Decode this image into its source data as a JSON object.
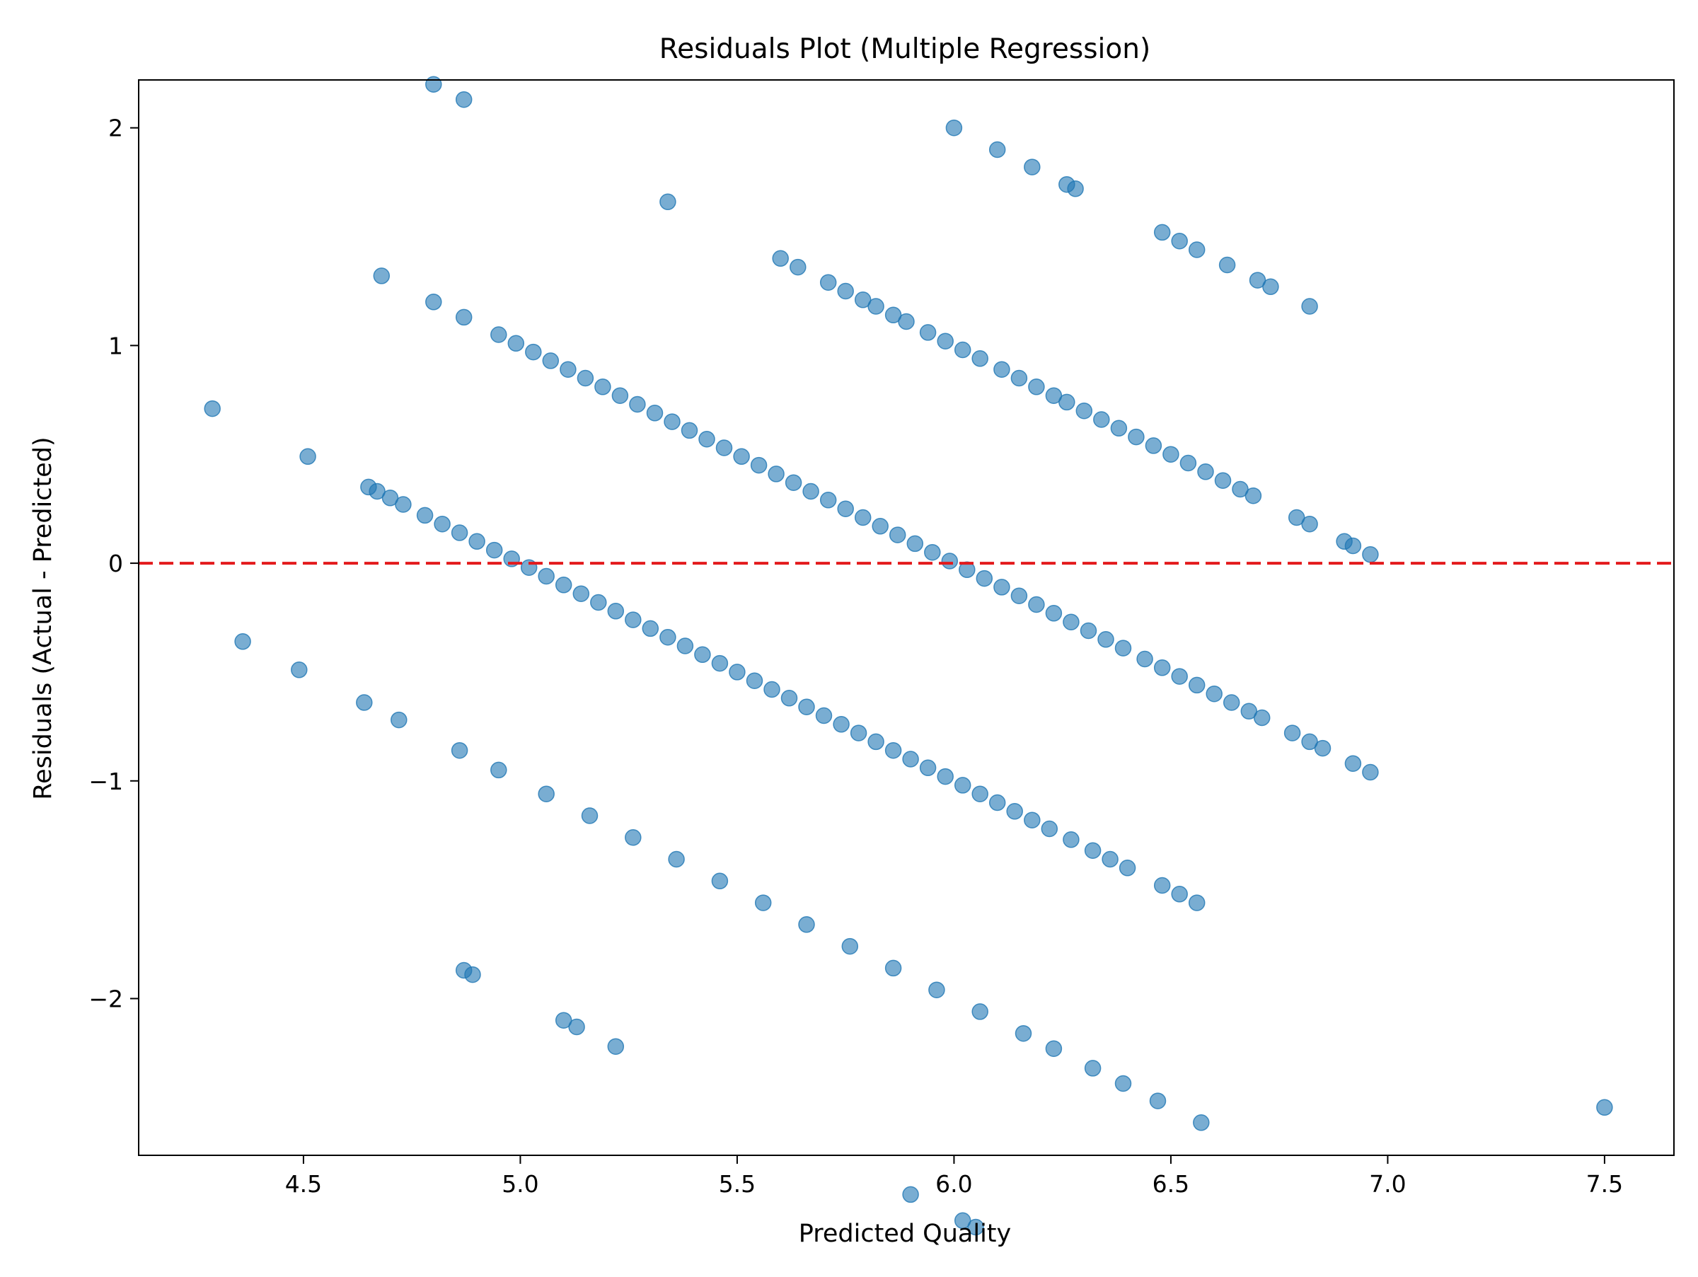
{
  "chart_data": {
    "type": "scatter",
    "title": "Residuals Plot (Multiple Regression)",
    "xlabel": "Predicted Quality",
    "ylabel": "Residuals (Actual - Predicted)",
    "xlim": [
      4.12,
      7.66
    ],
    "ylim": [
      -2.72,
      2.22
    ],
    "x_ticks": [
      {
        "value": 4.5,
        "label": "4.5"
      },
      {
        "value": 5.0,
        "label": "5.0"
      },
      {
        "value": 5.5,
        "label": "5.5"
      },
      {
        "value": 6.0,
        "label": "6.0"
      },
      {
        "value": 6.5,
        "label": "6.5"
      },
      {
        "value": 7.0,
        "label": "7.0"
      },
      {
        "value": 7.5,
        "label": "7.5"
      }
    ],
    "y_ticks": [
      {
        "value": 2,
        "label": "2"
      },
      {
        "value": 1,
        "label": "1"
      },
      {
        "value": 0,
        "label": "0"
      },
      {
        "value": -1,
        "label": "−1"
      },
      {
        "value": -2,
        "label": "−2"
      }
    ],
    "grid": false,
    "point_color": "#1f77b4",
    "reference_line": {
      "y": 0,
      "color": "#e31a1c",
      "style": "dashed"
    },
    "bands": [
      {
        "actual": 4,
        "x": [
          4.36,
          4.49,
          4.64,
          4.72,
          4.86,
          4.95,
          5.06,
          5.16,
          5.26,
          5.36,
          5.46,
          5.56,
          5.66,
          5.76,
          5.86,
          5.96,
          6.06,
          6.16,
          6.23,
          6.32,
          6.39,
          6.47,
          6.57
        ]
      },
      {
        "actual": 5,
        "x": [
          4.29,
          4.51,
          4.65,
          4.67,
          4.7,
          4.73,
          4.78,
          4.82,
          4.86,
          4.9,
          4.94,
          4.98,
          5.02,
          5.06,
          5.1,
          5.14,
          5.18,
          5.22,
          5.26,
          5.3,
          5.34,
          5.38,
          5.42,
          5.46,
          5.5,
          5.54,
          5.58,
          5.62,
          5.66,
          5.7,
          5.74,
          5.78,
          5.82,
          5.86,
          5.9,
          5.94,
          5.98,
          6.02,
          6.06,
          6.1,
          6.14,
          6.18,
          6.22,
          6.27,
          6.32,
          6.36,
          6.4,
          6.48,
          6.52,
          6.56
        ]
      },
      {
        "actual": 6,
        "x": [
          4.68,
          4.8,
          4.87,
          4.95,
          4.99,
          5.03,
          5.07,
          5.11,
          5.15,
          5.19,
          5.23,
          5.27,
          5.31,
          5.35,
          5.39,
          5.43,
          5.47,
          5.51,
          5.55,
          5.59,
          5.63,
          5.67,
          5.71,
          5.75,
          5.79,
          5.83,
          5.87,
          5.91,
          5.95,
          5.99,
          6.03,
          6.07,
          6.11,
          6.15,
          6.19,
          6.23,
          6.27,
          6.31,
          6.35,
          6.39,
          6.44,
          6.48,
          6.52,
          6.56,
          6.6,
          6.64,
          6.68,
          6.71,
          6.78,
          6.82,
          6.85,
          6.92,
          6.96
        ]
      },
      {
        "actual": 7,
        "x": [
          4.8,
          4.87,
          5.34,
          5.6,
          5.64,
          5.71,
          5.75,
          5.79,
          5.82,
          5.86,
          5.89,
          5.94,
          5.98,
          6.02,
          6.06,
          6.11,
          6.15,
          6.19,
          6.23,
          6.26,
          6.3,
          6.34,
          6.38,
          6.42,
          6.46,
          6.5,
          6.54,
          6.58,
          6.62,
          6.66,
          6.69,
          6.79,
          6.82,
          6.9,
          6.92,
          6.96
        ]
      },
      {
        "actual": 8,
        "x": [
          6.0,
          6.1,
          6.18,
          6.26,
          6.28,
          6.48,
          6.52,
          6.56,
          6.63,
          6.7,
          6.73,
          6.82
        ]
      },
      {
        "actual": 3,
        "x": [
          4.87,
          4.89,
          5.1,
          5.13,
          5.22,
          5.9,
          6.02,
          6.05,
          6.36
        ]
      },
      {
        "actual": 5,
        "x": [
          7.5
        ]
      }
    ]
  }
}
